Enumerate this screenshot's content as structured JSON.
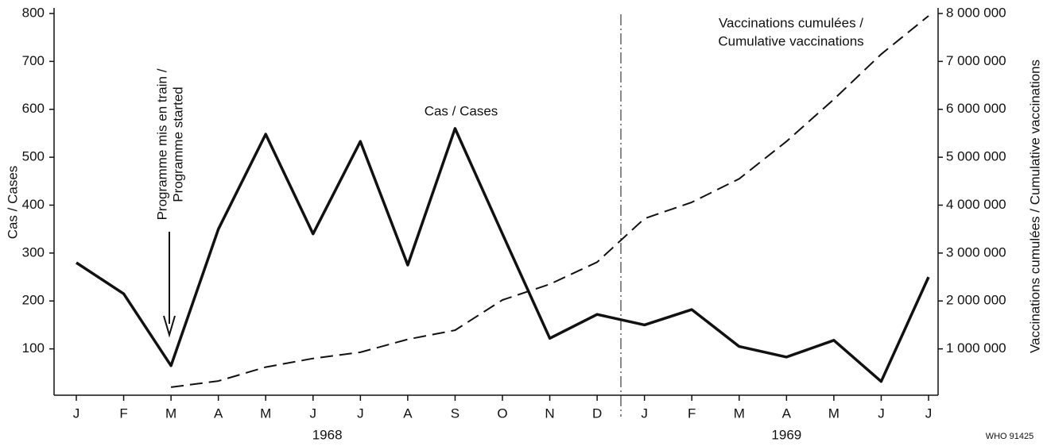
{
  "chart_data": {
    "type": "line",
    "categories": [
      "J",
      "F",
      "M",
      "A",
      "M",
      "J",
      "J",
      "A",
      "S",
      "O",
      "N",
      "D",
      "J",
      "F",
      "M",
      "A",
      "M",
      "J",
      "J"
    ],
    "x_groups": [
      "1968",
      "1969"
    ],
    "ylabel": "Cas / Cases",
    "y2label": "Vaccinations cumulées / Cumulative vaccinations",
    "ylim": [
      0,
      800
    ],
    "yticks": [
      100,
      200,
      300,
      400,
      500,
      600,
      700,
      800
    ],
    "y2lim": [
      0,
      8000000
    ],
    "y2ticks": [
      {
        "value": 1000000,
        "label": "1 000 000"
      },
      {
        "value": 2000000,
        "label": "2 000 000"
      },
      {
        "value": 3000000,
        "label": "3 000 000"
      },
      {
        "value": 4000000,
        "label": "4 000 000"
      },
      {
        "value": 5000000,
        "label": "5 000 000"
      },
      {
        "value": 6000000,
        "label": "6 000 000"
      },
      {
        "value": 7000000,
        "label": "7 000 000"
      },
      {
        "value": 8000000,
        "label": "8 000 000"
      }
    ],
    "series": [
      {
        "name": "Cas / Cases",
        "color": "#111111",
        "style": "solid",
        "values": [
          280,
          215,
          65,
          350,
          548,
          340,
          533,
          275,
          560,
          340,
          122,
          172,
          150,
          182,
          105,
          83,
          118,
          32,
          250
        ]
      },
      {
        "name": "Vaccinations cumulées / Cumulative vaccinations",
        "color": "#111111",
        "style": "dashed",
        "axis": "y2",
        "values": [
          null,
          null,
          200000,
          330000,
          620000,
          800000,
          930000,
          1200000,
          1390000,
          2020000,
          2350000,
          2810000,
          3720000,
          4060000,
          4550000,
          5330000,
          6210000,
          7150000,
          7950000
        ]
      }
    ],
    "annotations": [
      {
        "text": [
          "Programme mis en train /",
          "Programme started"
        ]
      },
      {
        "text": [
          "Cas / Cases"
        ]
      },
      {
        "text": [
          "Vaccinations cumulées /",
          "Cumulative vaccinations"
        ]
      }
    ],
    "source": "WHO 91425"
  }
}
